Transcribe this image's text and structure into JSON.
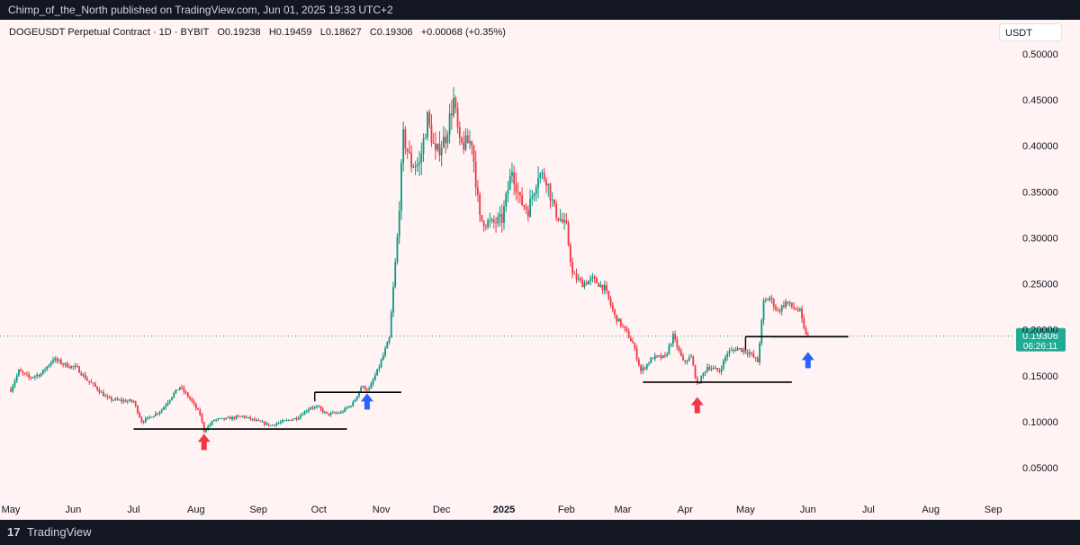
{
  "header": {
    "published": "Chimp_of_the_North published on TradingView.com, Jun 01, 2025 19:33 UTC+2"
  },
  "legend": {
    "symbol": "DOGEUSDT Perpetual Contract · 1D · BYBIT",
    "open_label": "O",
    "open": "0.19238",
    "high_label": "H",
    "high": "0.19459",
    "low_label": "L",
    "low": "0.18627",
    "close_label": "C",
    "close": "0.19306",
    "change": "+0.00068 (+0.35%)"
  },
  "currency": "USDT",
  "price_label": {
    "value": "0.19306",
    "countdown": "06:26:11"
  },
  "footer": {
    "logo_glyph": "17",
    "brand": "TradingView"
  },
  "colors": {
    "up": "#089981",
    "down": "#f23645",
    "background": "#fff3f3",
    "price_label": "#22ab94",
    "red_arrow": "#f23645",
    "blue_arrow": "#2962ff",
    "line": "#000000"
  },
  "chart_data": {
    "type": "candlestick",
    "timeframe": "1D",
    "y_axis": {
      "min": 0.03,
      "max": 0.52,
      "ticks": [
        "0.50000",
        "0.45000",
        "0.40000",
        "0.35000",
        "0.30000",
        "0.25000",
        "0.20000",
        "0.15000",
        "0.10000",
        "0.05000"
      ],
      "tick_values": [
        0.5,
        0.45,
        0.4,
        0.35,
        0.3,
        0.25,
        0.2,
        0.15,
        0.1,
        0.05
      ]
    },
    "x_axis": {
      "start": "2024-05-01",
      "end": "2025-09-03",
      "ticks": [
        {
          "label": "May",
          "date": "2024-05-01"
        },
        {
          "label": "Jun",
          "date": "2024-06-01"
        },
        {
          "label": "Jul",
          "date": "2024-07-01"
        },
        {
          "label": "Aug",
          "date": "2024-08-01"
        },
        {
          "label": "Sep",
          "date": "2024-09-01"
        },
        {
          "label": "Oct",
          "date": "2024-10-01"
        },
        {
          "label": "Nov",
          "date": "2024-11-01"
        },
        {
          "label": "Dec",
          "date": "2024-12-01"
        },
        {
          "label": "2025",
          "date": "2025-01-01",
          "bold": true
        },
        {
          "label": "Feb",
          "date": "2025-02-01"
        },
        {
          "label": "Mar",
          "date": "2025-03-01"
        },
        {
          "label": "Apr",
          "date": "2025-04-01"
        },
        {
          "label": "May",
          "date": "2025-05-01"
        },
        {
          "label": "Jun",
          "date": "2025-06-01"
        },
        {
          "label": "Jul",
          "date": "2025-07-01"
        },
        {
          "label": "Aug",
          "date": "2025-08-01"
        },
        {
          "label": "Sep",
          "date": "2025-09-01"
        }
      ]
    },
    "closes": [
      {
        "date": "2024-05-01",
        "price": 0.135
      },
      {
        "date": "2024-05-05",
        "price": 0.155
      },
      {
        "date": "2024-05-10",
        "price": 0.148
      },
      {
        "date": "2024-05-16",
        "price": 0.152
      },
      {
        "date": "2024-05-22",
        "price": 0.168
      },
      {
        "date": "2024-05-28",
        "price": 0.162
      },
      {
        "date": "2024-06-03",
        "price": 0.158
      },
      {
        "date": "2024-06-08",
        "price": 0.145
      },
      {
        "date": "2024-06-12",
        "price": 0.138
      },
      {
        "date": "2024-06-18",
        "price": 0.125
      },
      {
        "date": "2024-06-24",
        "price": 0.123
      },
      {
        "date": "2024-07-01",
        "price": 0.122
      },
      {
        "date": "2024-07-05",
        "price": 0.1
      },
      {
        "date": "2024-07-10",
        "price": 0.106
      },
      {
        "date": "2024-07-15",
        "price": 0.113
      },
      {
        "date": "2024-07-20",
        "price": 0.128
      },
      {
        "date": "2024-07-24",
        "price": 0.138
      },
      {
        "date": "2024-07-29",
        "price": 0.125
      },
      {
        "date": "2024-08-03",
        "price": 0.108
      },
      {
        "date": "2024-08-05",
        "price": 0.09
      },
      {
        "date": "2024-08-10",
        "price": 0.102
      },
      {
        "date": "2024-08-16",
        "price": 0.103
      },
      {
        "date": "2024-08-24",
        "price": 0.106
      },
      {
        "date": "2024-09-01",
        "price": 0.1
      },
      {
        "date": "2024-09-07",
        "price": 0.096
      },
      {
        "date": "2024-09-13",
        "price": 0.1
      },
      {
        "date": "2024-09-20",
        "price": 0.104
      },
      {
        "date": "2024-09-27",
        "price": 0.116
      },
      {
        "date": "2024-10-01",
        "price": 0.115
      },
      {
        "date": "2024-10-05",
        "price": 0.108
      },
      {
        "date": "2024-10-12",
        "price": 0.11
      },
      {
        "date": "2024-10-18",
        "price": 0.12
      },
      {
        "date": "2024-10-22",
        "price": 0.138
      },
      {
        "date": "2024-10-26",
        "price": 0.135
      },
      {
        "date": "2024-10-31",
        "price": 0.16
      },
      {
        "date": "2024-11-05",
        "price": 0.19
      },
      {
        "date": "2024-11-09",
        "price": 0.3
      },
      {
        "date": "2024-11-12",
        "price": 0.41
      },
      {
        "date": "2024-11-16",
        "price": 0.38
      },
      {
        "date": "2024-11-20",
        "price": 0.38
      },
      {
        "date": "2024-11-24",
        "price": 0.43
      },
      {
        "date": "2024-11-28",
        "price": 0.39
      },
      {
        "date": "2024-12-03",
        "price": 0.41
      },
      {
        "date": "2024-12-07",
        "price": 0.45
      },
      {
        "date": "2024-12-10",
        "price": 0.4
      },
      {
        "date": "2024-12-16",
        "price": 0.405
      },
      {
        "date": "2024-12-20",
        "price": 0.32
      },
      {
        "date": "2024-12-26",
        "price": 0.315
      },
      {
        "date": "2024-12-31",
        "price": 0.32
      },
      {
        "date": "2025-01-05",
        "price": 0.375
      },
      {
        "date": "2025-01-09",
        "price": 0.34
      },
      {
        "date": "2025-01-13",
        "price": 0.33
      },
      {
        "date": "2025-01-18",
        "price": 0.37
      },
      {
        "date": "2025-01-22",
        "price": 0.365
      },
      {
        "date": "2025-01-26",
        "price": 0.33
      },
      {
        "date": "2025-02-01",
        "price": 0.31
      },
      {
        "date": "2025-02-04",
        "price": 0.26
      },
      {
        "date": "2025-02-09",
        "price": 0.25
      },
      {
        "date": "2025-02-14",
        "price": 0.255
      },
      {
        "date": "2025-02-20",
        "price": 0.245
      },
      {
        "date": "2025-02-25",
        "price": 0.215
      },
      {
        "date": "2025-03-02",
        "price": 0.2
      },
      {
        "date": "2025-03-06",
        "price": 0.185
      },
      {
        "date": "2025-03-10",
        "price": 0.155
      },
      {
        "date": "2025-03-16",
        "price": 0.17
      },
      {
        "date": "2025-03-22",
        "price": 0.17
      },
      {
        "date": "2025-03-26",
        "price": 0.193
      },
      {
        "date": "2025-03-31",
        "price": 0.165
      },
      {
        "date": "2025-04-04",
        "price": 0.17
      },
      {
        "date": "2025-04-07",
        "price": 0.14
      },
      {
        "date": "2025-04-12",
        "price": 0.16
      },
      {
        "date": "2025-04-18",
        "price": 0.155
      },
      {
        "date": "2025-04-22",
        "price": 0.175
      },
      {
        "date": "2025-04-27",
        "price": 0.18
      },
      {
        "date": "2025-05-03",
        "price": 0.175
      },
      {
        "date": "2025-05-07",
        "price": 0.165
      },
      {
        "date": "2025-05-10",
        "price": 0.23
      },
      {
        "date": "2025-05-13",
        "price": 0.235
      },
      {
        "date": "2025-05-17",
        "price": 0.22
      },
      {
        "date": "2025-05-21",
        "price": 0.23
      },
      {
        "date": "2025-05-24",
        "price": 0.225
      },
      {
        "date": "2025-05-28",
        "price": 0.22
      },
      {
        "date": "2025-05-30",
        "price": 0.2
      },
      {
        "date": "2025-06-01",
        "price": 0.19306
      }
    ],
    "current_price": 0.19306,
    "annotations": {
      "horizontal_lines": [
        {
          "from": "2024-07-01",
          "to": "2024-10-15",
          "price": 0.092
        },
        {
          "from": "2024-09-29",
          "to": "2024-11-11",
          "price": 0.132
        },
        {
          "from": "2025-03-11",
          "to": "2025-05-24",
          "price": 0.143
        },
        {
          "from": "2025-05-01",
          "to": "2025-06-21",
          "price": 0.1925
        },
        {
          "from": "2025-05-14",
          "to": "2025-06-21",
          "price": 0.1925
        }
      ],
      "arrows": [
        {
          "date": "2024-08-05",
          "price": 0.078,
          "direction": "up",
          "color": "red"
        },
        {
          "date": "2024-10-25",
          "price": 0.122,
          "direction": "up",
          "color": "blue"
        },
        {
          "date": "2025-04-07",
          "price": 0.118,
          "direction": "up",
          "color": "red"
        },
        {
          "date": "2025-06-01",
          "price": 0.167,
          "direction": "up",
          "color": "blue"
        }
      ]
    }
  }
}
